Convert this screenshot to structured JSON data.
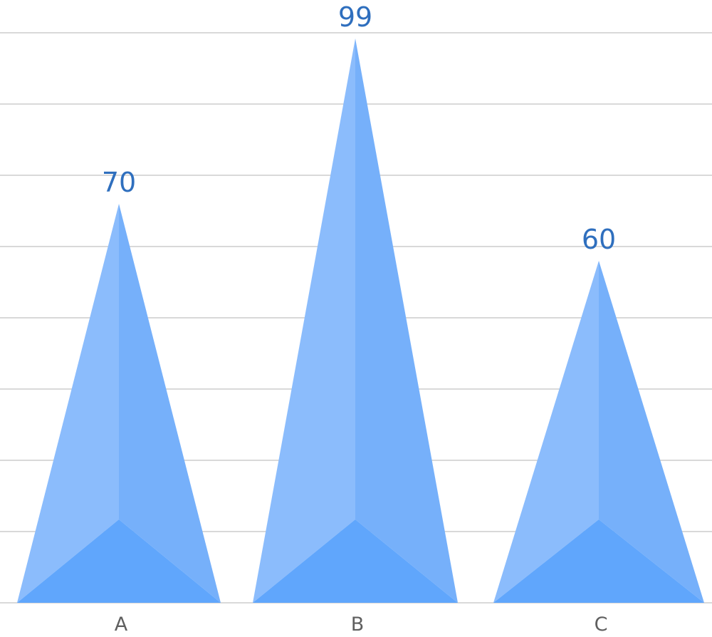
{
  "chart_data": {
    "type": "bar",
    "mark_shape": "pyramid",
    "categories": [
      "A",
      "B",
      "C"
    ],
    "values": [
      70,
      99,
      60
    ],
    "value_labels": [
      "70",
      "99",
      "60"
    ],
    "title": "",
    "xlabel": "",
    "ylabel": "",
    "ylim": [
      0,
      100
    ],
    "grid": true,
    "legend": "none",
    "colors": {
      "front_left": "#8bbcfc",
      "front_right": "#76b0fa",
      "base_face": "#60a6fc",
      "value_label": "#2f6fbe",
      "tick_label": "#5f5f5f",
      "gridline": "#d9d9d9"
    }
  }
}
